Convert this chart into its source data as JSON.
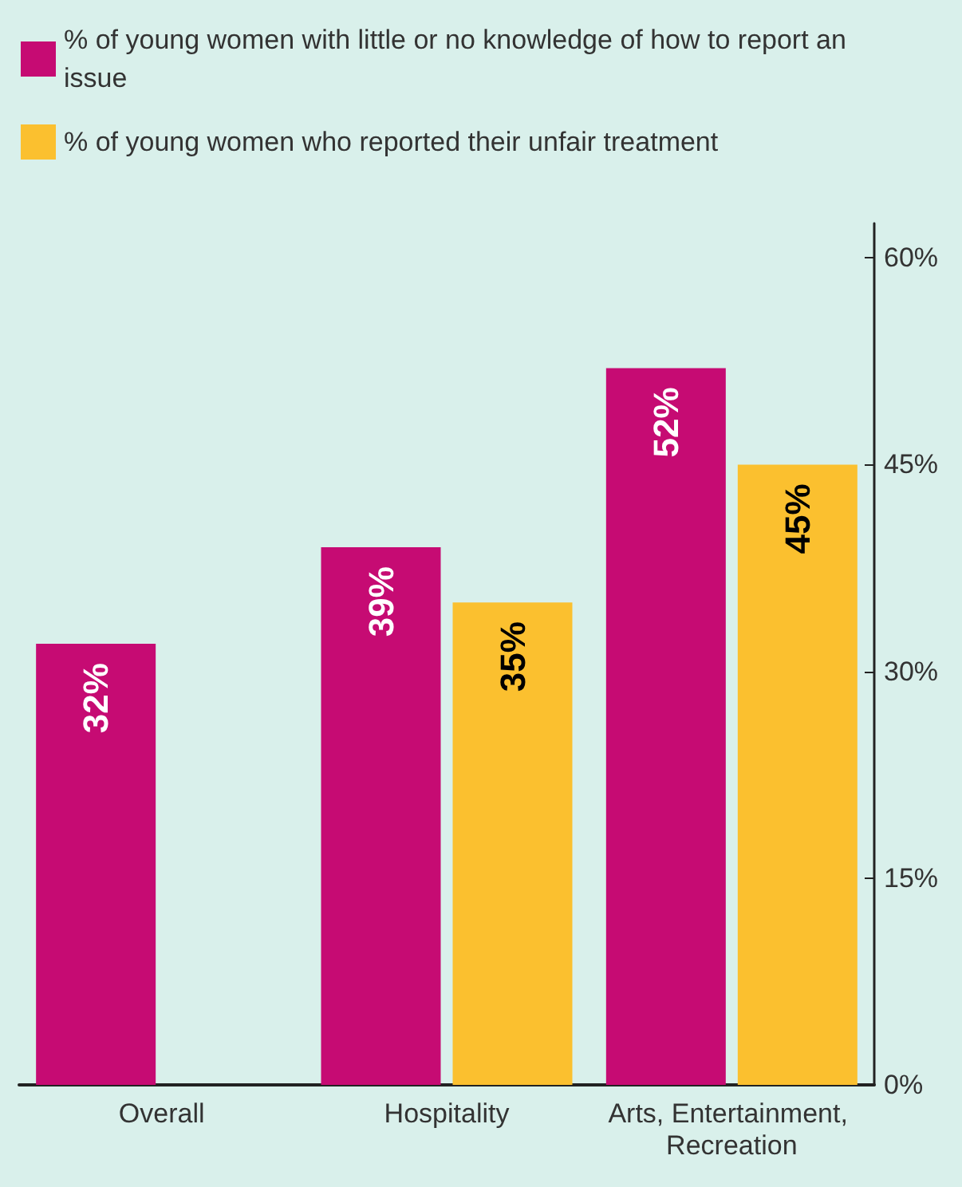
{
  "chart_data": {
    "type": "bar",
    "categories": [
      "Overall",
      "Hospitality",
      "Arts, Entertainment, Recreation"
    ],
    "series": [
      {
        "name": "% of young women with little or no knowledge of how to report an issue",
        "color": "#c60b73",
        "values": [
          32,
          39,
          52
        ],
        "value_labels": [
          "32%",
          "39%",
          "52%"
        ]
      },
      {
        "name": "% of young women who reported their unfair treatment",
        "color": "#fbc02f",
        "values": [
          null,
          35,
          45
        ],
        "value_labels": [
          null,
          "35%",
          "45%"
        ]
      }
    ],
    "ylim": [
      0,
      62.5
    ],
    "yticks": [
      {
        "value": 0,
        "label": "0%"
      },
      {
        "value": 15,
        "label": "15%"
      },
      {
        "value": 30,
        "label": "30%"
      },
      {
        "value": 45,
        "label": "45%"
      },
      {
        "value": 60,
        "label": "60%"
      }
    ],
    "grid": false,
    "legend": "top left"
  }
}
